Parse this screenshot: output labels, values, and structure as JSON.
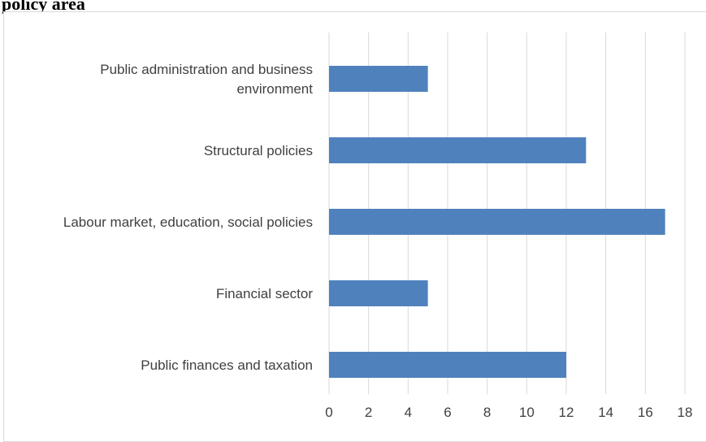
{
  "page": {
    "title": "policy area"
  },
  "chart_data": {
    "type": "bar",
    "orientation": "horizontal",
    "categories": [
      [
        "Public administration and business",
        "environment"
      ],
      [
        "Structural policies"
      ],
      [
        "Labour market, education, social policies"
      ],
      [
        "Financial sector"
      ],
      [
        "Public finances and taxation"
      ]
    ],
    "values": [
      5,
      13,
      17,
      5,
      12
    ],
    "xlim": [
      0,
      18
    ],
    "xticks": [
      "0",
      "2",
      "4",
      "6",
      "8",
      "10",
      "12",
      "14",
      "16",
      "18"
    ],
    "grid": "vertical",
    "bar_color": "#4f81bd",
    "grid_color": "#d9d9d9",
    "title": "",
    "xlabel": "",
    "ylabel": ""
  }
}
